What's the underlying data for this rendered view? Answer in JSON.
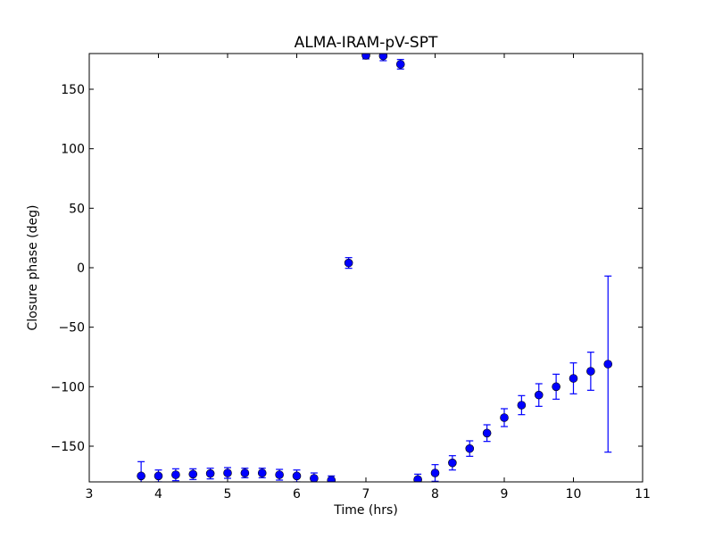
{
  "chart_data": {
    "type": "scatter",
    "title": "ALMA-IRAM-pV-SPT",
    "xlabel": "Time (hrs)",
    "ylabel": "Closure phase (deg)",
    "xlim": [
      3,
      11
    ],
    "ylim": [
      -180,
      180
    ],
    "xticks": [
      3,
      4,
      5,
      6,
      7,
      8,
      9,
      10,
      11
    ],
    "yticks": [
      -150,
      -100,
      -50,
      0,
      50,
      100,
      150
    ],
    "ytick_labels": [
      "−150",
      "−100",
      "−50",
      "0",
      "50",
      "100",
      "150"
    ],
    "grid": false,
    "color": "#0000ff",
    "x": [
      3.75,
      4.0,
      4.25,
      4.5,
      4.75,
      5.0,
      5.25,
      5.5,
      5.75,
      6.0,
      6.25,
      6.5,
      6.75,
      7.0,
      7.25,
      7.5,
      7.75,
      8.0,
      8.25,
      8.5,
      8.75,
      9.0,
      9.25,
      9.5,
      9.75,
      10.0,
      10.25,
      10.5
    ],
    "y": [
      -175,
      -175,
      -174,
      -173.5,
      -173,
      -172.5,
      -172.5,
      -172.5,
      -174,
      -175,
      -177,
      -178.5,
      4,
      178.5,
      178,
      171,
      -178,
      -172.5,
      -164,
      -152,
      -139,
      -126,
      -115.5,
      -107,
      -100,
      -93,
      -87,
      -81
    ],
    "err": [
      12,
      5,
      5,
      4.5,
      4.5,
      4.5,
      4,
      4,
      4.5,
      5,
      4.5,
      3.5,
      4.5,
      3,
      4,
      4,
      4.5,
      7,
      6,
      6.5,
      7,
      7.5,
      8,
      9.5,
      10.5,
      13,
      16,
      74
    ]
  }
}
